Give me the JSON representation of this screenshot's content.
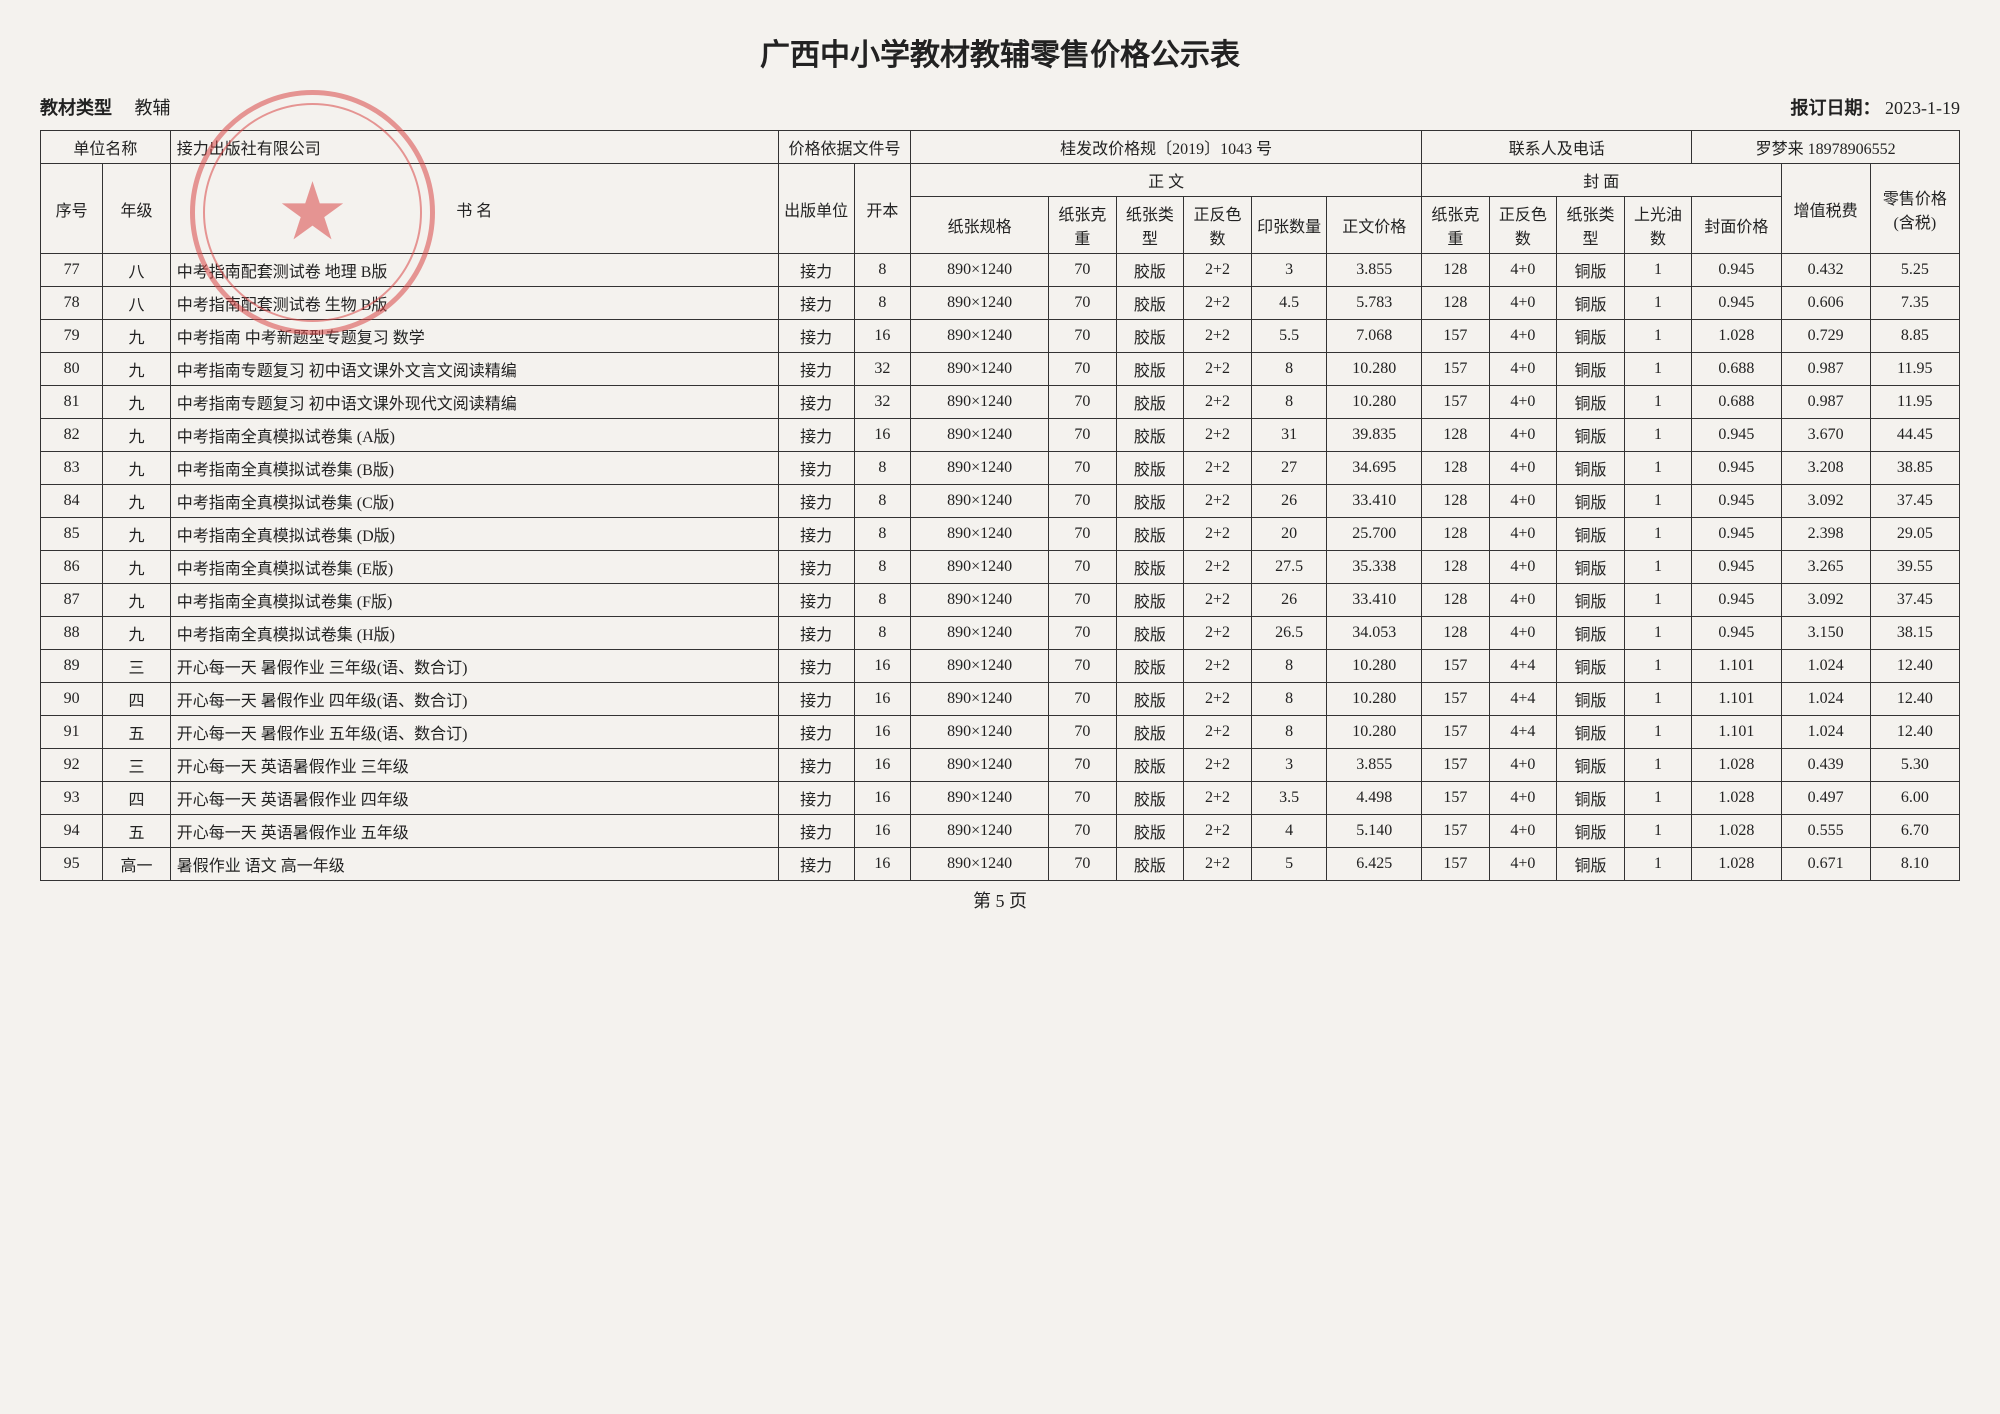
{
  "title": "广西中小学教材教辅零售价格公示表",
  "meta": {
    "type_label": "教材类型",
    "type_value": "教辅",
    "date_label": "报订日期：",
    "date_value": "2023-1-19"
  },
  "header": {
    "unit_label": "单位名称",
    "unit_value": "接力出版社有限公司",
    "basis_label": "价格依据文件号",
    "basis_value": "桂发改价格规〔2019〕1043 号",
    "contact_label": "联系人及电话",
    "contact_value": "罗梦来  18978906552"
  },
  "cols": {
    "seq": "序号",
    "grade": "年级",
    "name": "书    名",
    "publisher": "出版单位",
    "format": "开本",
    "body_group": "正  文",
    "cover_group": "封  面",
    "paper_spec": "纸张规格",
    "paper_wt": "纸张克重",
    "paper_type": "纸张类型",
    "color": "正反色数",
    "sheet_qty": "印张数量",
    "body_price": "正文价格",
    "cover_wt": "纸张克重",
    "cover_color": "正反色数",
    "cover_type": "纸张类型",
    "oil": "上光油数",
    "cover_price": "封面价格",
    "tax": "增值税费",
    "retail": "零售价格(含税)"
  },
  "rows": [
    {
      "seq": "77",
      "grade": "八",
      "name": "中考指南配套测试卷  地理  B版",
      "pub": "接力",
      "fmt": "8",
      "spec": "890×1240",
      "wt": "70",
      "type": "胶版",
      "clr": "2+2",
      "qty": "3",
      "bprice": "3.855",
      "cwt": "128",
      "cclr": "4+0",
      "ctype": "铜版",
      "oil": "1",
      "cprice": "0.945",
      "tax": "0.432",
      "retail": "5.25"
    },
    {
      "seq": "78",
      "grade": "八",
      "name": "中考指南配套测试卷  生物  B版",
      "pub": "接力",
      "fmt": "8",
      "spec": "890×1240",
      "wt": "70",
      "type": "胶版",
      "clr": "2+2",
      "qty": "4.5",
      "bprice": "5.783",
      "cwt": "128",
      "cclr": "4+0",
      "ctype": "铜版",
      "oil": "1",
      "cprice": "0.945",
      "tax": "0.606",
      "retail": "7.35"
    },
    {
      "seq": "79",
      "grade": "九",
      "name": "中考指南  中考新题型专题复习  数学",
      "pub": "接力",
      "fmt": "16",
      "spec": "890×1240",
      "wt": "70",
      "type": "胶版",
      "clr": "2+2",
      "qty": "5.5",
      "bprice": "7.068",
      "cwt": "157",
      "cclr": "4+0",
      "ctype": "铜版",
      "oil": "1",
      "cprice": "1.028",
      "tax": "0.729",
      "retail": "8.85"
    },
    {
      "seq": "80",
      "grade": "九",
      "name": "中考指南专题复习  初中语文课外文言文阅读精编",
      "pub": "接力",
      "fmt": "32",
      "spec": "890×1240",
      "wt": "70",
      "type": "胶版",
      "clr": "2+2",
      "qty": "8",
      "bprice": "10.280",
      "cwt": "157",
      "cclr": "4+0",
      "ctype": "铜版",
      "oil": "1",
      "cprice": "0.688",
      "tax": "0.987",
      "retail": "11.95"
    },
    {
      "seq": "81",
      "grade": "九",
      "name": "中考指南专题复习  初中语文课外现代文阅读精编",
      "pub": "接力",
      "fmt": "32",
      "spec": "890×1240",
      "wt": "70",
      "type": "胶版",
      "clr": "2+2",
      "qty": "8",
      "bprice": "10.280",
      "cwt": "157",
      "cclr": "4+0",
      "ctype": "铜版",
      "oil": "1",
      "cprice": "0.688",
      "tax": "0.987",
      "retail": "11.95"
    },
    {
      "seq": "82",
      "grade": "九",
      "name": "中考指南全真模拟试卷集  (A版)",
      "pub": "接力",
      "fmt": "16",
      "spec": "890×1240",
      "wt": "70",
      "type": "胶版",
      "clr": "2+2",
      "qty": "31",
      "bprice": "39.835",
      "cwt": "128",
      "cclr": "4+0",
      "ctype": "铜版",
      "oil": "1",
      "cprice": "0.945",
      "tax": "3.670",
      "retail": "44.45"
    },
    {
      "seq": "83",
      "grade": "九",
      "name": "中考指南全真模拟试卷集  (B版)",
      "pub": "接力",
      "fmt": "8",
      "spec": "890×1240",
      "wt": "70",
      "type": "胶版",
      "clr": "2+2",
      "qty": "27",
      "bprice": "34.695",
      "cwt": "128",
      "cclr": "4+0",
      "ctype": "铜版",
      "oil": "1",
      "cprice": "0.945",
      "tax": "3.208",
      "retail": "38.85"
    },
    {
      "seq": "84",
      "grade": "九",
      "name": "中考指南全真模拟试卷集  (C版)",
      "pub": "接力",
      "fmt": "8",
      "spec": "890×1240",
      "wt": "70",
      "type": "胶版",
      "clr": "2+2",
      "qty": "26",
      "bprice": "33.410",
      "cwt": "128",
      "cclr": "4+0",
      "ctype": "铜版",
      "oil": "1",
      "cprice": "0.945",
      "tax": "3.092",
      "retail": "37.45"
    },
    {
      "seq": "85",
      "grade": "九",
      "name": "中考指南全真模拟试卷集  (D版)",
      "pub": "接力",
      "fmt": "8",
      "spec": "890×1240",
      "wt": "70",
      "type": "胶版",
      "clr": "2+2",
      "qty": "20",
      "bprice": "25.700",
      "cwt": "128",
      "cclr": "4+0",
      "ctype": "铜版",
      "oil": "1",
      "cprice": "0.945",
      "tax": "2.398",
      "retail": "29.05"
    },
    {
      "seq": "86",
      "grade": "九",
      "name": "中考指南全真模拟试卷集  (E版)",
      "pub": "接力",
      "fmt": "8",
      "spec": "890×1240",
      "wt": "70",
      "type": "胶版",
      "clr": "2+2",
      "qty": "27.5",
      "bprice": "35.338",
      "cwt": "128",
      "cclr": "4+0",
      "ctype": "铜版",
      "oil": "1",
      "cprice": "0.945",
      "tax": "3.265",
      "retail": "39.55"
    },
    {
      "seq": "87",
      "grade": "九",
      "name": "中考指南全真模拟试卷集  (F版)",
      "pub": "接力",
      "fmt": "8",
      "spec": "890×1240",
      "wt": "70",
      "type": "胶版",
      "clr": "2+2",
      "qty": "26",
      "bprice": "33.410",
      "cwt": "128",
      "cclr": "4+0",
      "ctype": "铜版",
      "oil": "1",
      "cprice": "0.945",
      "tax": "3.092",
      "retail": "37.45"
    },
    {
      "seq": "88",
      "grade": "九",
      "name": "中考指南全真模拟试卷集  (H版)",
      "pub": "接力",
      "fmt": "8",
      "spec": "890×1240",
      "wt": "70",
      "type": "胶版",
      "clr": "2+2",
      "qty": "26.5",
      "bprice": "34.053",
      "cwt": "128",
      "cclr": "4+0",
      "ctype": "铜版",
      "oil": "1",
      "cprice": "0.945",
      "tax": "3.150",
      "retail": "38.15"
    },
    {
      "seq": "89",
      "grade": "三",
      "name": "开心每一天  暑假作业  三年级(语、数合订)",
      "pub": "接力",
      "fmt": "16",
      "spec": "890×1240",
      "wt": "70",
      "type": "胶版",
      "clr": "2+2",
      "qty": "8",
      "bprice": "10.280",
      "cwt": "157",
      "cclr": "4+4",
      "ctype": "铜版",
      "oil": "1",
      "cprice": "1.101",
      "tax": "1.024",
      "retail": "12.40"
    },
    {
      "seq": "90",
      "grade": "四",
      "name": "开心每一天  暑假作业  四年级(语、数合订)",
      "pub": "接力",
      "fmt": "16",
      "spec": "890×1240",
      "wt": "70",
      "type": "胶版",
      "clr": "2+2",
      "qty": "8",
      "bprice": "10.280",
      "cwt": "157",
      "cclr": "4+4",
      "ctype": "铜版",
      "oil": "1",
      "cprice": "1.101",
      "tax": "1.024",
      "retail": "12.40"
    },
    {
      "seq": "91",
      "grade": "五",
      "name": "开心每一天  暑假作业  五年级(语、数合订)",
      "pub": "接力",
      "fmt": "16",
      "spec": "890×1240",
      "wt": "70",
      "type": "胶版",
      "clr": "2+2",
      "qty": "8",
      "bprice": "10.280",
      "cwt": "157",
      "cclr": "4+4",
      "ctype": "铜版",
      "oil": "1",
      "cprice": "1.101",
      "tax": "1.024",
      "retail": "12.40"
    },
    {
      "seq": "92",
      "grade": "三",
      "name": "开心每一天  英语暑假作业  三年级",
      "pub": "接力",
      "fmt": "16",
      "spec": "890×1240",
      "wt": "70",
      "type": "胶版",
      "clr": "2+2",
      "qty": "3",
      "bprice": "3.855",
      "cwt": "157",
      "cclr": "4+0",
      "ctype": "铜版",
      "oil": "1",
      "cprice": "1.028",
      "tax": "0.439",
      "retail": "5.30"
    },
    {
      "seq": "93",
      "grade": "四",
      "name": "开心每一天  英语暑假作业  四年级",
      "pub": "接力",
      "fmt": "16",
      "spec": "890×1240",
      "wt": "70",
      "type": "胶版",
      "clr": "2+2",
      "qty": "3.5",
      "bprice": "4.498",
      "cwt": "157",
      "cclr": "4+0",
      "ctype": "铜版",
      "oil": "1",
      "cprice": "1.028",
      "tax": "0.497",
      "retail": "6.00"
    },
    {
      "seq": "94",
      "grade": "五",
      "name": "开心每一天  英语暑假作业  五年级",
      "pub": "接力",
      "fmt": "16",
      "spec": "890×1240",
      "wt": "70",
      "type": "胶版",
      "clr": "2+2",
      "qty": "4",
      "bprice": "5.140",
      "cwt": "157",
      "cclr": "4+0",
      "ctype": "铜版",
      "oil": "1",
      "cprice": "1.028",
      "tax": "0.555",
      "retail": "6.70"
    },
    {
      "seq": "95",
      "grade": "高一",
      "name": "暑假作业  语文  高一年级",
      "pub": "接力",
      "fmt": "16",
      "spec": "890×1240",
      "wt": "70",
      "type": "胶版",
      "clr": "2+2",
      "qty": "5",
      "bprice": "6.425",
      "cwt": "157",
      "cclr": "4+0",
      "ctype": "铜版",
      "oil": "1",
      "cprice": "1.028",
      "tax": "0.671",
      "retail": "8.10"
    }
  ],
  "footer": "第 5 页",
  "styling": {
    "background_color": "#f4f2ee",
    "border_color": "#333333",
    "title_fontsize": 30,
    "body_fontsize": 16,
    "stamp_color": "#d94848"
  }
}
